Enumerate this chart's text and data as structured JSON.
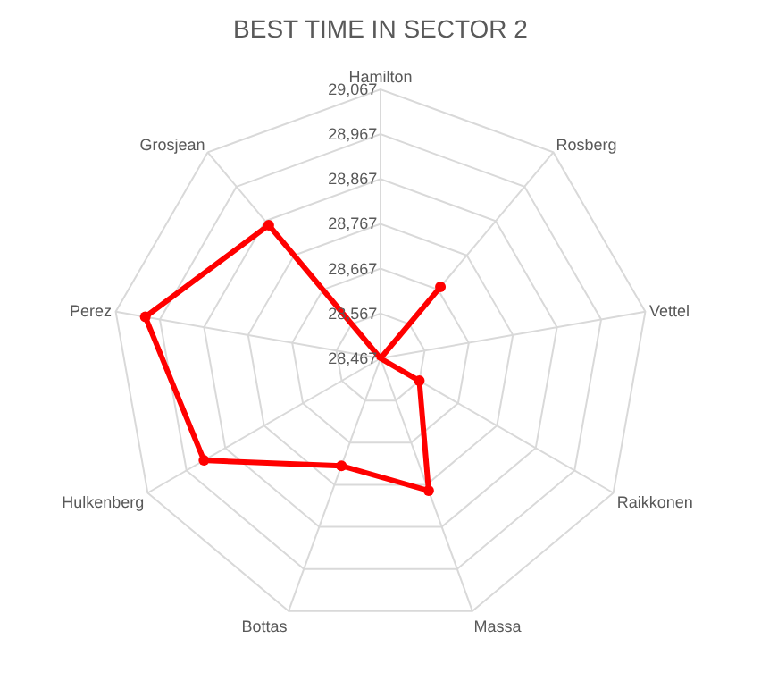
{
  "chart_data": {
    "type": "radar",
    "title": "BEST TIME IN SECTOR 2",
    "categories": [
      "Hamilton",
      "Rosberg",
      "Vettel",
      "Raikkonen",
      "Massa",
      "Bottas",
      "Hulkenberg",
      "Perez",
      "Grosjean"
    ],
    "series": [
      {
        "color": "#ff0000",
        "values": [
          28467,
          28675,
          28467,
          28567,
          28781,
          28722,
          28922,
          29000,
          28855
        ]
      }
    ],
    "ylim": [
      28467,
      29067
    ],
    "yticks": [
      {
        "value": 28467,
        "label": "28,467"
      },
      {
        "value": 28567,
        "label": "28,567"
      },
      {
        "value": 28667,
        "label": "28,667"
      },
      {
        "value": 28767,
        "label": "28,767"
      },
      {
        "value": 28867,
        "label": "28,867"
      },
      {
        "value": 28967,
        "label": "28,967"
      },
      {
        "value": 29067,
        "label": "29,067"
      }
    ],
    "grid": true,
    "marker": "circle",
    "line_style": "solid"
  }
}
